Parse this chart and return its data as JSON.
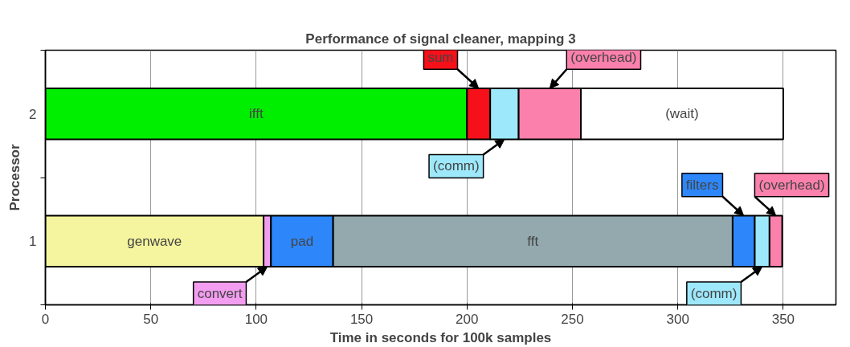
{
  "chart_data": {
    "type": "bar",
    "orientation": "horizontal",
    "stacked": true,
    "title": "Performance of signal cleaner, mapping 3",
    "xlabel": "Time in seconds for 100k samples",
    "ylabel": "Processor",
    "categories": [
      "2",
      "1"
    ],
    "xlim": [
      0,
      375
    ],
    "xticks": [
      0,
      50,
      100,
      150,
      200,
      250,
      300,
      350
    ],
    "grid": "x",
    "series": [
      {
        "name": "genwave",
        "color": "#f5f59f",
        "values": [
          null,
          103.5
        ]
      },
      {
        "name": "convert",
        "color": "#f29df0",
        "values": [
          null,
          3.5
        ]
      },
      {
        "name": "pad",
        "color": "#2d87fb",
        "values": [
          null,
          29.5
        ]
      },
      {
        "name": "fft",
        "color": "#93a9ad",
        "values": [
          null,
          189.5
        ]
      },
      {
        "name": "ifft",
        "color": "#00ee00",
        "values": [
          200,
          null
        ]
      },
      {
        "name": "sum",
        "color": "#f5101a",
        "values": [
          11,
          null
        ]
      },
      {
        "name": "filters",
        "color": "#2d87fb",
        "values": [
          null,
          10.5
        ]
      },
      {
        "name": "(comm)",
        "color": "#9ee8fb",
        "values": [
          13.5,
          7
        ]
      },
      {
        "name": "(overhead)",
        "color": "#fb80ab",
        "values": [
          29.5,
          6
        ]
      },
      {
        "name": "(wait)",
        "color": "#ffffff",
        "values": [
          96,
          null
        ]
      }
    ]
  }
}
